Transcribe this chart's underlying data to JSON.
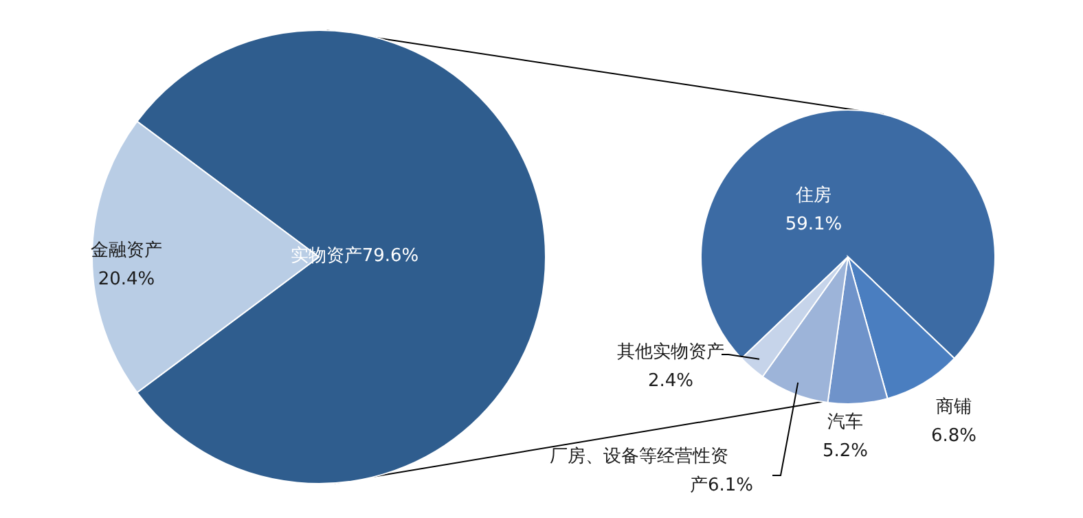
{
  "chart_data": [
    {
      "type": "pie",
      "categories": [
        "实物资产",
        "金融资产"
      ],
      "values": [
        79.6,
        20.4
      ],
      "colors": [
        "#2f5d8e",
        "#b9cde5"
      ],
      "value_labels": [
        "79.6%",
        "20.4%"
      ]
    },
    {
      "type": "pie",
      "categories": [
        "住房",
        "商铺",
        "汽车",
        "厂房、设备等经营性资产",
        "其他实物资产"
      ],
      "values": [
        59.1,
        6.8,
        5.2,
        6.1,
        2.4
      ],
      "colors": [
        "#3c6ba4",
        "#4a7ec0",
        "#6f93ca",
        "#9db4d9",
        "#c6d4ea"
      ],
      "value_labels": [
        "59.1%",
        "6.8%",
        "5.2%",
        "6.1%",
        "2.4%"
      ]
    }
  ]
}
